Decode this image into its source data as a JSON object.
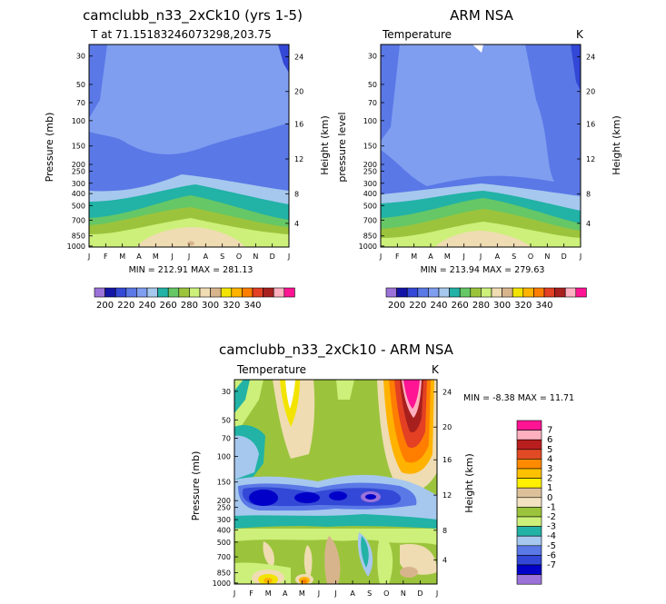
{
  "chart_data": [
    {
      "type": "heatmap",
      "title": "camclubb_n33_2xCk10 (yrs 1-5)",
      "subtitle_left": "T at 71.15183246073298,203.75",
      "subtitle_right": "",
      "ylabel": "Pressure (mb)",
      "ylabel_right": "Height (km)",
      "months": [
        "J",
        "F",
        "M",
        "A",
        "M",
        "J",
        "J",
        "A",
        "S",
        "O",
        "N",
        "D",
        "J"
      ],
      "pressure_ticks": [
        "30",
        "50",
        "70",
        "100",
        "150",
        "200",
        "250",
        "300",
        "400",
        "500",
        "700",
        "850",
        "1000"
      ],
      "height_ticks": [
        "24",
        "20",
        "16",
        "12",
        "8",
        "4"
      ],
      "stats": "MIN = 212.91  MAX = 281.13",
      "colorbar_labels": [
        "200",
        "220",
        "240",
        "260",
        "280",
        "300",
        "320",
        "340"
      ]
    },
    {
      "type": "heatmap",
      "title": "ARM NSA",
      "subtitle_left": "Temperature",
      "subtitle_right": "K",
      "ylabel": "pressure level",
      "ylabel_right": "Height (km)",
      "months": [
        "J",
        "F",
        "M",
        "A",
        "M",
        "J",
        "J",
        "A",
        "S",
        "O",
        "N",
        "D",
        "J"
      ],
      "pressure_ticks": [
        "30",
        "50",
        "70",
        "100",
        "150",
        "200",
        "250",
        "300",
        "400",
        "500",
        "700",
        "850",
        "1000"
      ],
      "height_ticks": [
        "24",
        "20",
        "16",
        "12",
        "8",
        "4"
      ],
      "stats": "MIN = 213.94  MAX = 279.63",
      "colorbar_labels": [
        "200",
        "220",
        "240",
        "260",
        "280",
        "300",
        "320",
        "340"
      ]
    },
    {
      "type": "heatmap",
      "title": "camclubb_n33_2xCk10 - ARM NSA",
      "subtitle_left": "Temperature",
      "subtitle_right": "K",
      "ylabel": "Pressure (mb)",
      "ylabel_right": "Height (km)",
      "months": [
        "J",
        "F",
        "M",
        "A",
        "M",
        "J",
        "J",
        "A",
        "S",
        "O",
        "N",
        "D",
        "J"
      ],
      "pressure_ticks": [
        "30",
        "50",
        "70",
        "100",
        "150",
        "200",
        "250",
        "300",
        "400",
        "500",
        "700",
        "850",
        "1000"
      ],
      "height_ticks": [
        "24",
        "20",
        "16",
        "12",
        "8",
        "4"
      ],
      "stats": "MIN =   -8.38  MAX =   11.71",
      "colorbar_labels": [
        "7",
        "6",
        "5",
        "4",
        "3",
        "2",
        "1",
        "0",
        "-1",
        "-2",
        "-3",
        "-4",
        "-5",
        "-6",
        "-7"
      ]
    }
  ],
  "colors": {
    "abs_scale": [
      "#9b72d9",
      "#1414a8",
      "#3348d6",
      "#5a78e6",
      "#7f9ef0",
      "#a6c8ee",
      "#22b2a6",
      "#66c766",
      "#9bc43c",
      "#cdf07a",
      "#efdcb2",
      "#d8b48c",
      "#f2e400",
      "#ffb300",
      "#ff7e00",
      "#e34024",
      "#a8201e",
      "#ffb0c0",
      "#ff1493"
    ],
    "diff_scale": [
      "#ff1493",
      "#ffb0c0",
      "#b81e1e",
      "#e04a24",
      "#ff8a00",
      "#ffc000",
      "#ffef00",
      "#dcc09a",
      "#f2e2c2",
      "#9bc43c",
      "#cdf07a",
      "#22b2a6",
      "#a6c8ee",
      "#5a78e6",
      "#3348d6",
      "#0000c8",
      "#9b72d9"
    ]
  }
}
